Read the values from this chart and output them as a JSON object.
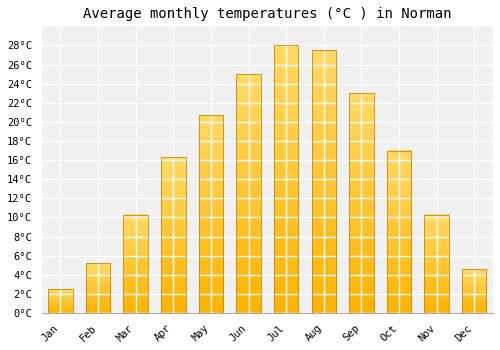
{
  "title": "Average monthly temperatures (°C ) in Norman",
  "months": [
    "Jan",
    "Feb",
    "Mar",
    "Apr",
    "May",
    "Jun",
    "Jul",
    "Aug",
    "Sep",
    "Oct",
    "Nov",
    "Dec"
  ],
  "temperatures": [
    2.5,
    5.2,
    10.3,
    16.3,
    20.7,
    25.0,
    28.0,
    27.5,
    23.0,
    17.0,
    10.3,
    4.6
  ],
  "bar_color_bottom": "#FFB300",
  "bar_color_top": "#FFD966",
  "bar_edge_color": "#CC8800",
  "ylim": [
    0,
    30
  ],
  "yticks": [
    0,
    2,
    4,
    6,
    8,
    10,
    12,
    14,
    16,
    18,
    20,
    22,
    24,
    26,
    28
  ],
  "background_color": "#ffffff",
  "plot_bg_color": "#f0f0f0",
  "grid_color": "#ffffff",
  "title_fontsize": 10,
  "tick_fontsize": 7.5,
  "font_family": "monospace"
}
